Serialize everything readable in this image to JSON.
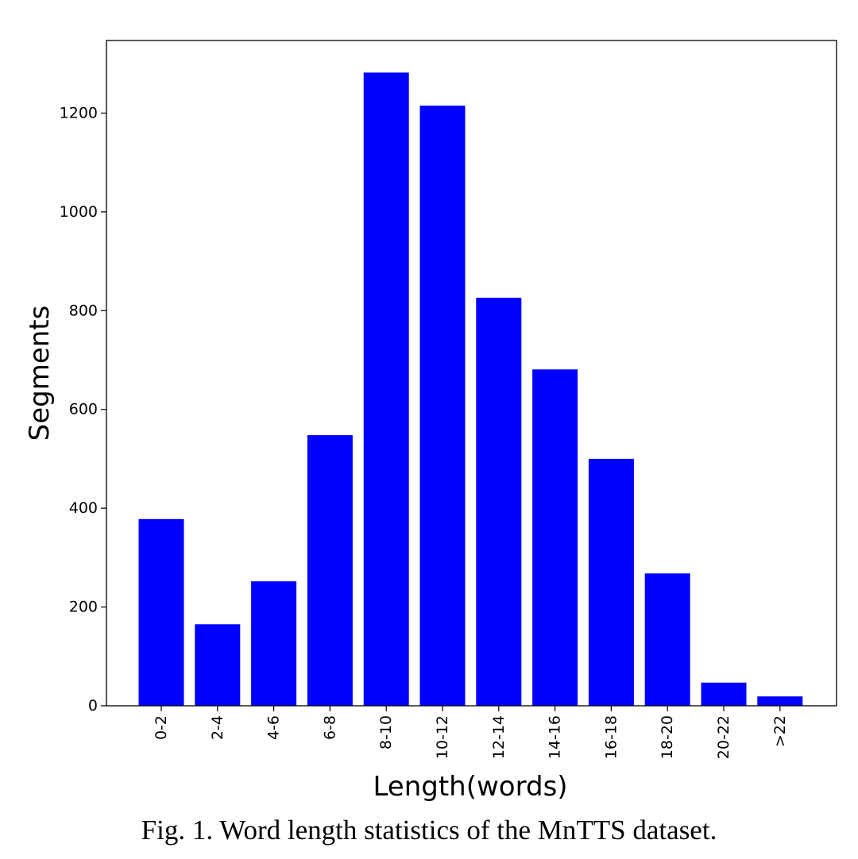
{
  "caption": "Fig. 1.  Word length statistics of the MnTTS dataset.",
  "chart_data": {
    "type": "bar",
    "categories": [
      "0-2",
      "2-4",
      "4-6",
      "6-8",
      "8-10",
      "10-12",
      "12-14",
      "14-16",
      "16-18",
      "18-20",
      "20-22",
      ">22"
    ],
    "values": [
      378,
      165,
      252,
      548,
      1282,
      1215,
      826,
      681,
      500,
      268,
      47,
      19
    ],
    "xlabel": "Length(words)",
    "ylabel": "Segments",
    "ylim": [
      0,
      1347
    ],
    "yticks": [
      0,
      200,
      400,
      600,
      800,
      1000,
      1200
    ],
    "bar_color": "#0000ff",
    "grid": false,
    "legend": false
  }
}
